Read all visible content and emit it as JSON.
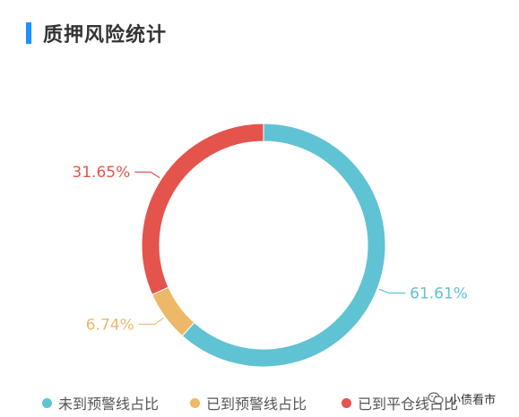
{
  "header": {
    "title": "质押风险统计"
  },
  "colors": {
    "accent": "#1e90ff"
  },
  "chart_data": {
    "type": "pie",
    "title": "质押风险统计",
    "donut": true,
    "legend_position": "bottom",
    "slices": [
      {
        "name": "未到预警线占比",
        "value": 61.61,
        "label": "61.61%",
        "color": "#60c3d3"
      },
      {
        "name": "已到预警线占比",
        "value": 6.74,
        "label": "6.74%",
        "color": "#edb867"
      },
      {
        "name": "已到平仓线占比",
        "value": 31.65,
        "label": "31.65%",
        "color": "#e4544c"
      }
    ]
  },
  "watermark": {
    "text": "小债看市",
    "icon": "wechat-icon"
  }
}
